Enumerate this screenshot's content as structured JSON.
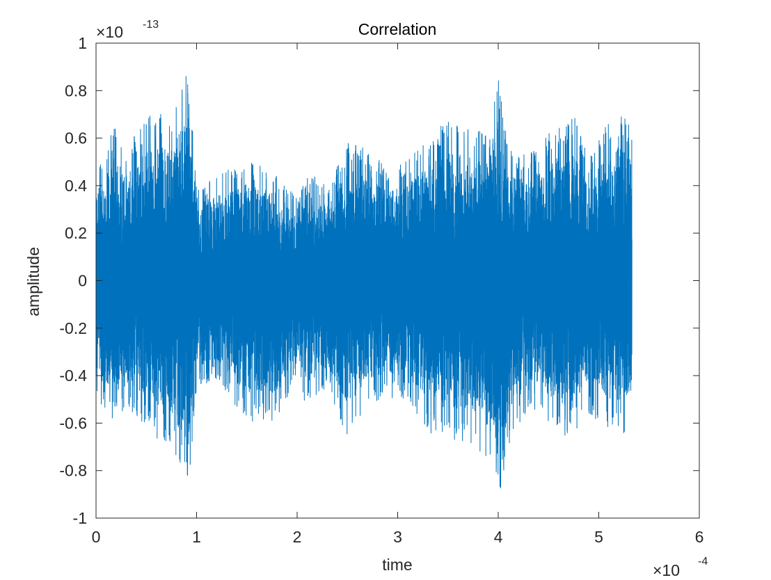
{
  "chart_data": {
    "type": "line",
    "title": "Correlation",
    "xlabel": "time",
    "ylabel": "amplitude",
    "x_scale_label": {
      "base": "×10",
      "exp": "-4"
    },
    "y_scale_label": {
      "base": "×10",
      "exp": "-13"
    },
    "xlim": [
      0,
      6
    ],
    "ylim": [
      -1,
      1
    ],
    "xticks": [
      "0",
      "1",
      "2",
      "3",
      "4",
      "5",
      "6"
    ],
    "yticks": [
      "-1",
      "-0.8",
      "-0.6",
      "-0.4",
      "-0.2",
      "0",
      "0.2",
      "0.4",
      "0.6",
      "0.8",
      "1"
    ],
    "grid": false,
    "series": [
      {
        "color": "#0072BD",
        "x_range": [
          0,
          5.33
        ],
        "envelope": {
          "x": [
            0,
            0.1,
            0.2,
            0.3,
            0.5,
            0.7,
            0.8,
            0.92,
            1.0,
            1.2,
            1.5,
            1.8,
            2.0,
            2.1,
            2.3,
            2.5,
            2.7,
            2.9,
            3.1,
            3.3,
            3.5,
            3.7,
            3.9,
            4.0,
            4.1,
            4.3,
            4.5,
            4.75,
            4.9,
            5.1,
            5.25,
            5.33
          ],
          "upper": [
            0.49,
            0.55,
            0.68,
            0.56,
            0.7,
            0.71,
            0.76,
            0.89,
            0.4,
            0.45,
            0.51,
            0.46,
            0.35,
            0.47,
            0.4,
            0.58,
            0.56,
            0.47,
            0.51,
            0.6,
            0.69,
            0.65,
            0.62,
            0.89,
            0.55,
            0.53,
            0.62,
            0.7,
            0.52,
            0.68,
            0.72,
            0.62
          ],
          "lower": [
            -0.5,
            -0.55,
            -0.6,
            -0.55,
            -0.62,
            -0.72,
            -0.75,
            -0.9,
            -0.45,
            -0.42,
            -0.6,
            -0.59,
            -0.4,
            -0.55,
            -0.46,
            -0.66,
            -0.52,
            -0.5,
            -0.5,
            -0.64,
            -0.68,
            -0.68,
            -0.78,
            -0.94,
            -0.71,
            -0.54,
            -0.6,
            -0.7,
            -0.57,
            -0.62,
            -0.66,
            -0.57
          ]
        }
      }
    ]
  }
}
